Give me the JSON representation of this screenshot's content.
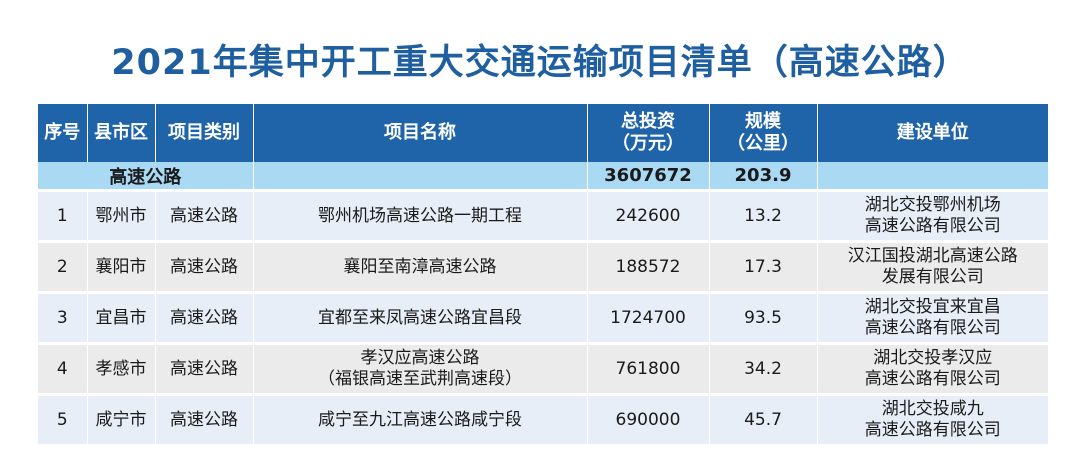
{
  "title": "2021年集中开工重大交通运输项目清单（高速公路）",
  "headers": {
    "no": "序号",
    "county": "县市区",
    "type": "项目类别",
    "name": "项目名称",
    "investment_line1": "总投资",
    "investment_line2": "（万元）",
    "length_line1": "规模",
    "length_line2": "（公里）",
    "unit": "建设单位"
  },
  "subtotal": {
    "label": "高速公路",
    "investment": "3607672",
    "length": "203.9"
  },
  "rows": [
    {
      "no": "1",
      "county": "鄂州市",
      "type": "高速公路",
      "name_line1": "鄂州机场高速公路一期工程",
      "name_line2": "",
      "investment": "242600",
      "length": "13.2",
      "unit_line1": "湖北交投鄂州机场",
      "unit_line2": "高速公路有限公司"
    },
    {
      "no": "2",
      "county": "襄阳市",
      "type": "高速公路",
      "name_line1": "襄阳至南漳高速公路",
      "name_line2": "",
      "investment": "188572",
      "length": "17.3",
      "unit_line1": "汉江国投湖北高速公路",
      "unit_line2": "发展有限公司"
    },
    {
      "no": "3",
      "county": "宜昌市",
      "type": "高速公路",
      "name_line1": "宜都至来凤高速公路宜昌段",
      "name_line2": "",
      "investment": "1724700",
      "length": "93.5",
      "unit_line1": "湖北交投宜来宜昌",
      "unit_line2": "高速公路有限公司"
    },
    {
      "no": "4",
      "county": "孝感市",
      "type": "高速公路",
      "name_line1": "孝汉应高速公路",
      "name_line2": "（福银高速至武荆高速段）",
      "investment": "761800",
      "length": "34.2",
      "unit_line1": "湖北交投孝汉应",
      "unit_line2": "高速公路有限公司"
    },
    {
      "no": "5",
      "county": "咸宁市",
      "type": "高速公路",
      "name_line1": "咸宁至九江高速公路咸宁段",
      "name_line2": "",
      "investment": "690000",
      "length": "45.7",
      "unit_line1": "湖北交投咸九",
      "unit_line2": "高速公路有限公司"
    }
  ],
  "colors": {
    "title": "#1f5fa0",
    "header_bg": "#1f63a8",
    "subtotal_bg": "#a9d9f3",
    "row_odd_bg": "#e7eef8",
    "row_even_bg": "#ebebeb"
  }
}
